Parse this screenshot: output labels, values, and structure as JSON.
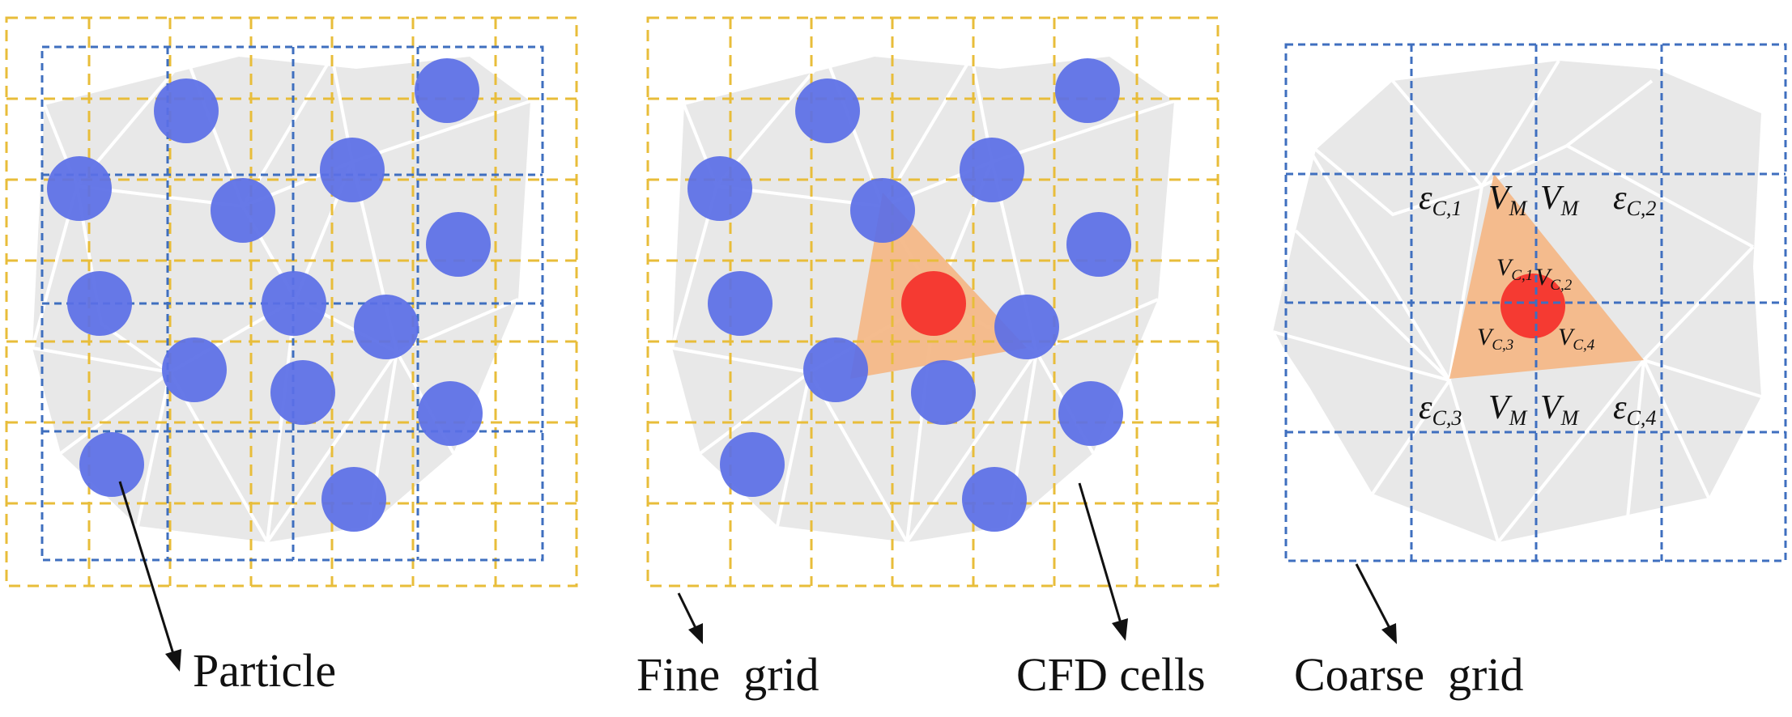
{
  "labels": {
    "particle": "Particle",
    "fine_grid": "Fine  grid",
    "cfd_cells": "CFD cells",
    "coarse_grid": "Coarse  grid"
  },
  "symbols": {
    "eps": "ε",
    "vol": "V",
    "sub_m": "M",
    "sub_c1": "C,1",
    "sub_c2": "C,2",
    "sub_c3": "C,3",
    "sub_c4": "C,4"
  },
  "colors": {
    "particle": "#5b6fe6",
    "center_particle": "#f53a32",
    "fine_grid": "#e8bd3a",
    "coarse_grid": "#3f6fbf",
    "cell_fill": "#e8e8e8",
    "mesh_line": "#ffffff",
    "highlight_cell": "#f4b888"
  }
}
